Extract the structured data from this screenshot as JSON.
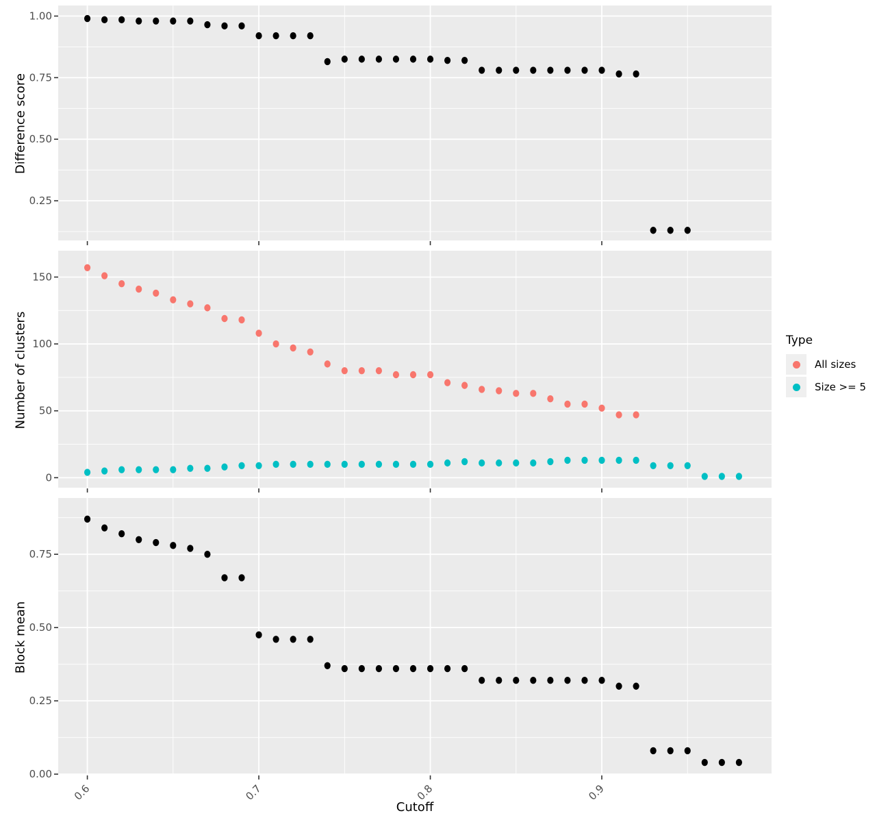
{
  "figure": {
    "background": "#FFFFFF",
    "panel_bg": "#EBEBEB",
    "grid_color": "#FFFFFF",
    "tick_mark_color": "#333333",
    "tick_label_color": "#4D4D4D",
    "black_point_color": "#000000"
  },
  "axes": {
    "x_title": "Cutoff",
    "x_ticks": [
      0.6,
      0.7,
      0.8,
      0.9
    ],
    "x_tick_labels": [
      "0.6",
      "0.7",
      "0.8",
      "0.9"
    ],
    "x_minor": [
      0.65,
      0.75,
      0.85,
      0.95
    ],
    "xlim": [
      0.583,
      0.999
    ]
  },
  "legend": {
    "title": "Type",
    "key_bg": "#EFEFEF",
    "items": [
      {
        "label": "All sizes",
        "color": "#F8766D"
      },
      {
        "label": "Size >= 5",
        "color": "#00BFC4"
      }
    ]
  },
  "chart_data": [
    {
      "type": "scatter",
      "ylabel": "Difference score",
      "ylim": [
        0.089,
        1.043
      ],
      "yticks": [
        1.0,
        0.75,
        0.5,
        0.25
      ],
      "ytick_labels": [
        "1.00",
        "0.75",
        "0.50",
        "0.25"
      ],
      "yminor": [
        0.875,
        0.625,
        0.375,
        0.125
      ],
      "grid": true,
      "series": [
        {
          "name": "Difference score",
          "color": "#000000",
          "x": [
            0.6,
            0.61,
            0.62,
            0.63,
            0.64,
            0.65,
            0.66,
            0.67,
            0.68,
            0.69,
            0.7,
            0.71,
            0.72,
            0.73,
            0.74,
            0.75,
            0.76,
            0.77,
            0.78,
            0.79,
            0.8,
            0.81,
            0.82,
            0.83,
            0.84,
            0.85,
            0.86,
            0.87,
            0.88,
            0.89,
            0.9,
            0.91,
            0.92,
            0.93,
            0.94,
            0.95
          ],
          "y": [
            0.99,
            0.985,
            0.985,
            0.98,
            0.98,
            0.98,
            0.98,
            0.965,
            0.96,
            0.96,
            0.92,
            0.92,
            0.92,
            0.92,
            0.815,
            0.825,
            0.825,
            0.825,
            0.825,
            0.825,
            0.825,
            0.82,
            0.82,
            0.78,
            0.78,
            0.78,
            0.78,
            0.78,
            0.78,
            0.78,
            0.78,
            0.765,
            0.765,
            0.13,
            0.13,
            0.13
          ]
        }
      ]
    },
    {
      "type": "scatter",
      "ylabel": "Number of clusters",
      "ylim": [
        -7.5,
        169.7
      ],
      "yticks": [
        150,
        100,
        50,
        0
      ],
      "ytick_labels": [
        "150",
        "100",
        "50",
        "0"
      ],
      "yminor": [
        125,
        75,
        25
      ],
      "grid": true,
      "series": [
        {
          "name": "All sizes",
          "color": "#F8766D",
          "x": [
            0.6,
            0.61,
            0.62,
            0.63,
            0.64,
            0.65,
            0.66,
            0.67,
            0.68,
            0.69,
            0.7,
            0.71,
            0.72,
            0.73,
            0.74,
            0.75,
            0.76,
            0.77,
            0.78,
            0.79,
            0.8,
            0.81,
            0.82,
            0.83,
            0.84,
            0.85,
            0.86,
            0.87,
            0.88,
            0.89,
            0.9,
            0.91,
            0.92
          ],
          "y": [
            157,
            151,
            145,
            141,
            138,
            133,
            130,
            127,
            119,
            118,
            108,
            100,
            97,
            94,
            85,
            80,
            80,
            80,
            77,
            77,
            77,
            71,
            69,
            66,
            65,
            63,
            63,
            59,
            55,
            55,
            52,
            47,
            47
          ]
        },
        {
          "name": "Size >= 5",
          "color": "#00BFC4",
          "x": [
            0.6,
            0.61,
            0.62,
            0.63,
            0.64,
            0.65,
            0.66,
            0.67,
            0.68,
            0.69,
            0.7,
            0.71,
            0.72,
            0.73,
            0.74,
            0.75,
            0.76,
            0.77,
            0.78,
            0.79,
            0.8,
            0.81,
            0.82,
            0.83,
            0.84,
            0.85,
            0.86,
            0.87,
            0.88,
            0.89,
            0.9,
            0.91,
            0.92,
            0.93,
            0.94,
            0.95,
            0.96,
            0.97,
            0.98
          ],
          "y": [
            4,
            5,
            6,
            6,
            6,
            6,
            7,
            7,
            8,
            9,
            9,
            10,
            10,
            10,
            10,
            10,
            10,
            10,
            10,
            10,
            10,
            11,
            12,
            11,
            11,
            11,
            11,
            12,
            13,
            13,
            13,
            13,
            13,
            9,
            9,
            9,
            1,
            1,
            1
          ]
        }
      ]
    },
    {
      "type": "scatter",
      "ylabel": "Block mean",
      "ylim": [
        -0.002,
        0.942
      ],
      "yticks": [
        0.75,
        0.5,
        0.25,
        0.0
      ],
      "ytick_labels": [
        "0.75",
        "0.50",
        "0.25",
        "0.00"
      ],
      "yminor": [
        0.875,
        0.625,
        0.375,
        0.125
      ],
      "grid": true,
      "series": [
        {
          "name": "Block mean",
          "color": "#000000",
          "x": [
            0.6,
            0.61,
            0.62,
            0.63,
            0.64,
            0.65,
            0.66,
            0.67,
            0.68,
            0.69,
            0.7,
            0.71,
            0.72,
            0.73,
            0.74,
            0.75,
            0.76,
            0.77,
            0.78,
            0.79,
            0.8,
            0.81,
            0.82,
            0.83,
            0.84,
            0.85,
            0.86,
            0.87,
            0.88,
            0.89,
            0.9,
            0.91,
            0.92,
            0.93,
            0.94,
            0.95,
            0.96,
            0.97,
            0.98
          ],
          "y": [
            0.87,
            0.84,
            0.82,
            0.8,
            0.79,
            0.78,
            0.77,
            0.75,
            0.67,
            0.67,
            0.475,
            0.46,
            0.46,
            0.46,
            0.37,
            0.36,
            0.36,
            0.36,
            0.36,
            0.36,
            0.36,
            0.36,
            0.36,
            0.32,
            0.32,
            0.32,
            0.32,
            0.32,
            0.32,
            0.32,
            0.32,
            0.3,
            0.3,
            0.08,
            0.08,
            0.08,
            0.04,
            0.04,
            0.04
          ]
        }
      ]
    }
  ]
}
